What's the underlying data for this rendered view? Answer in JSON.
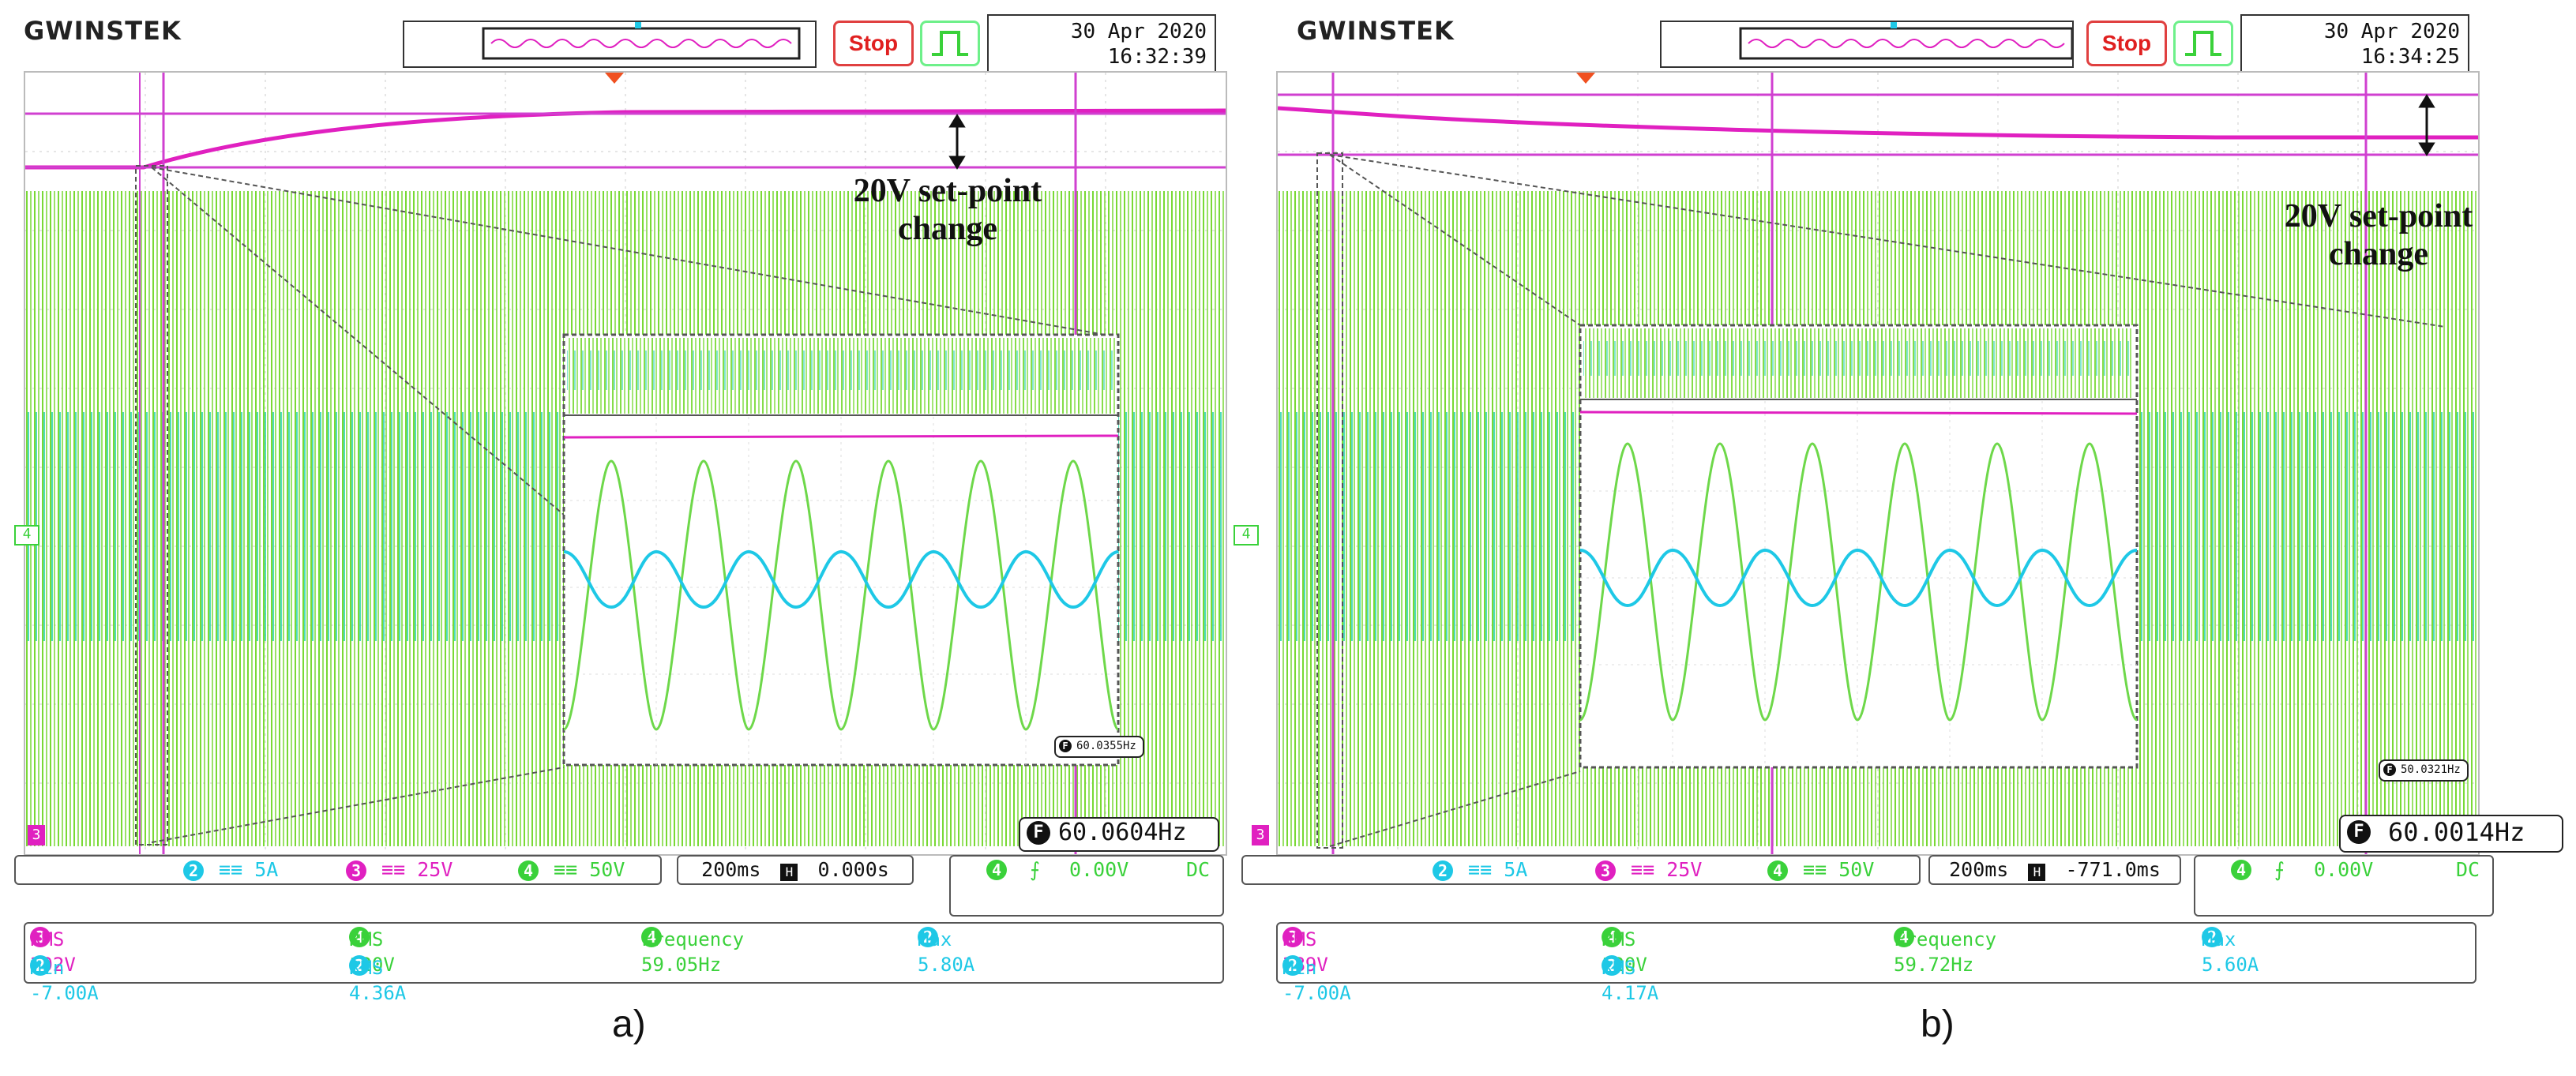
{
  "panels": [
    {
      "brand": "GWINSTEK",
      "stop_label": "Stop",
      "date": "30 Apr 2020",
      "time": "16:32:39",
      "annotation_line1": "20V set-point",
      "annotation_line2": "change",
      "freq_main": "60.0604Hz",
      "freq_inset": "60.0355Hz",
      "ch_left_marker": "4",
      "ch_bottom_marker": "3",
      "ch2_scale": "5A",
      "ch3_scale": "25V",
      "ch4_scale": "50V",
      "timebase": "200ms",
      "delay": "0.000s",
      "trig_channel": "4",
      "trig_level": "0.00V",
      "trig_coupling": "DC",
      "meas": {
        "rms3": "RMS 392V",
        "rms4": "RMS 120V",
        "freq4": "Frequency 59.05Hz",
        "max2": "Max 5.80A",
        "min2": "Min -7.00A",
        "rms2": "RMS 4.36A"
      },
      "caption": "a)"
    },
    {
      "brand": "GWINSTEK",
      "stop_label": "Stop",
      "date": "30 Apr 2020",
      "time": "16:34:25",
      "annotation_line1": "20V set-point",
      "annotation_line2": "change",
      "freq_main": "60.0014Hz",
      "freq_inset": "50.0321Hz",
      "ch_left_marker": "4",
      "ch_bottom_marker": "3",
      "ch2_scale": "5A",
      "ch3_scale": "25V",
      "ch4_scale": "50V",
      "timebase": "200ms",
      "delay": "-771.0ms",
      "trig_channel": "4",
      "trig_level": "0.00V",
      "trig_coupling": "DC",
      "meas": {
        "rms3": "RMS 389V",
        "rms4": "RMS 120V",
        "freq4": "Frequency 59.72Hz",
        "max2": "Max 5.60A",
        "min2": "Min -7.00A",
        "rms2": "RMS 4.17A"
      },
      "caption": "b)"
    }
  ],
  "colors": {
    "ch2": "#1ec8e6",
    "ch3": "#e020c0",
    "ch4": "#3ad13a",
    "cursor": "#d040d0"
  }
}
